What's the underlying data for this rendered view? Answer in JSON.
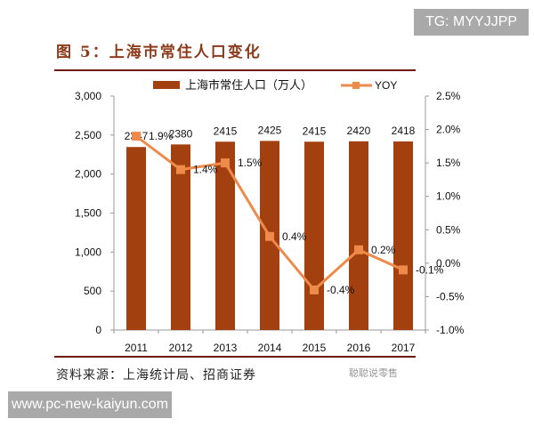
{
  "watermark_top": "TG: MYYJJPP",
  "watermark_bottom": "www.pc-new-kaiyun.com",
  "footer": {
    "source": "资料来源：上海统计局、招商证券",
    "brand_watermark": "聪聪说零售"
  },
  "colors": {
    "bar": "#a3400f",
    "line": "#ee8a4a",
    "title": "#8b3a1a",
    "rule": "#6e1a10"
  },
  "chart_data": {
    "type": "bar+line",
    "title": "图 5：上海市常住人口变化",
    "categories": [
      "2011",
      "2012",
      "2013",
      "2014",
      "2015",
      "2016",
      "2017"
    ],
    "series": [
      {
        "name": "上海市常住人口（万人）",
        "type": "bar",
        "axis": "left",
        "values": [
          2347,
          2380,
          2415,
          2425,
          2415,
          2420,
          2418
        ]
      },
      {
        "name": "YOY",
        "type": "line",
        "axis": "right",
        "values": [
          1.9,
          1.4,
          1.5,
          0.4,
          -0.4,
          0.2,
          -0.1
        ],
        "labels": [
          "1.9%",
          "1.4%",
          "1.5%",
          "0.4%",
          "-0.4%",
          "0.2%",
          "-0.1%"
        ]
      }
    ],
    "ylim_left": [
      0,
      3000
    ],
    "yticks_left": [
      "0",
      "500",
      "1,000",
      "1,500",
      "2,000",
      "2,500",
      "3,000"
    ],
    "ylim_right": [
      -1.0,
      2.5
    ],
    "yticks_right": [
      "-1.0%",
      "-0.5%",
      "0.0%",
      "0.5%",
      "1.0%",
      "1.5%",
      "2.0%",
      "2.5%"
    ],
    "grid": false,
    "legend": "top"
  }
}
